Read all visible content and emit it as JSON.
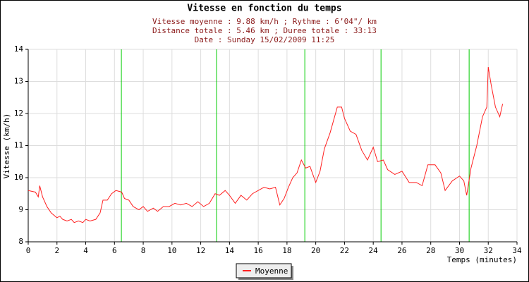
{
  "chart_data": {
    "type": "line",
    "title": "Vitesse en fonction du temps",
    "subtitle": [
      "Vitesse moyenne : 9.88 km/h ; Rythme : 6’04\"/ km",
      "Distance totale : 5.46 km ; Duree totale : 33:13",
      "Date : Sunday 15/02/2009 11:25"
    ],
    "x_label": "Temps (minutes)",
    "y_label": "Vitesse (km/h)",
    "xlim": [
      0,
      34
    ],
    "xticks": [
      0,
      2,
      4,
      6,
      8,
      10,
      12,
      14,
      16,
      18,
      20,
      22,
      24,
      26,
      28,
      30,
      32,
      34
    ],
    "ylim": [
      8,
      14
    ],
    "yticks": [
      8,
      9,
      10,
      11,
      12,
      13,
      14
    ],
    "grid": true,
    "km_markers": [
      6.48,
      13.1,
      19.24,
      24.54,
      30.67
    ],
    "marker_color": "#00cc00",
    "x": [
      0,
      0.5,
      0.7,
      0.8,
      1.0,
      1.3,
      1.6,
      2.0,
      2.2,
      2.4,
      2.7,
      3.0,
      3.2,
      3.5,
      3.8,
      4.0,
      4.3,
      4.7,
      5.0,
      5.2,
      5.5,
      5.8,
      6.1,
      6.5,
      6.7,
      7.0,
      7.3,
      7.7,
      8.0,
      8.3,
      8.7,
      9.0,
      9.4,
      9.8,
      10.2,
      10.6,
      11.0,
      11.4,
      11.8,
      12.2,
      12.6,
      13.0,
      13.3,
      13.7,
      14.0,
      14.4,
      14.8,
      15.2,
      15.6,
      16.0,
      16.4,
      16.8,
      17.2,
      17.5,
      17.8,
      18.1,
      18.4,
      18.7,
      19.0,
      19.3,
      19.6,
      20.0,
      20.3,
      20.6,
      21.0,
      21.5,
      21.8,
      22.0,
      22.4,
      22.8,
      23.2,
      23.6,
      24.0,
      24.3,
      24.7,
      25.0,
      25.5,
      26.0,
      26.5,
      27.0,
      27.4,
      27.8,
      28.3,
      28.7,
      29.0,
      29.5,
      30.0,
      30.3,
      30.5,
      30.8,
      31.2,
      31.6,
      31.9,
      32.0,
      32.2,
      32.5,
      32.8,
      33.0
    ],
    "series": [
      {
        "name": "Moyenne",
        "color": "#ff2020",
        "values": [
          9.6,
          9.55,
          9.4,
          9.75,
          9.4,
          9.1,
          8.9,
          8.75,
          8.8,
          8.7,
          8.65,
          8.7,
          8.6,
          8.65,
          8.6,
          8.7,
          8.65,
          8.7,
          8.9,
          9.3,
          9.3,
          9.5,
          9.6,
          9.55,
          9.35,
          9.3,
          9.1,
          9.0,
          9.1,
          8.95,
          9.05,
          8.95,
          9.1,
          9.1,
          9.2,
          9.15,
          9.2,
          9.1,
          9.25,
          9.1,
          9.2,
          9.5,
          9.45,
          9.6,
          9.45,
          9.2,
          9.45,
          9.3,
          9.5,
          9.6,
          9.7,
          9.65,
          9.7,
          9.15,
          9.35,
          9.7,
          10.0,
          10.15,
          10.55,
          10.3,
          10.35,
          9.85,
          10.2,
          10.9,
          11.4,
          12.2,
          12.2,
          11.85,
          11.45,
          11.35,
          10.85,
          10.55,
          10.95,
          10.5,
          10.55,
          10.25,
          10.1,
          10.2,
          9.85,
          9.85,
          9.75,
          10.4,
          10.4,
          10.15,
          9.6,
          9.9,
          10.05,
          9.9,
          9.45,
          10.3,
          11.0,
          11.9,
          12.2,
          13.45,
          12.9,
          12.2,
          11.9,
          12.3
        ]
      }
    ]
  }
}
